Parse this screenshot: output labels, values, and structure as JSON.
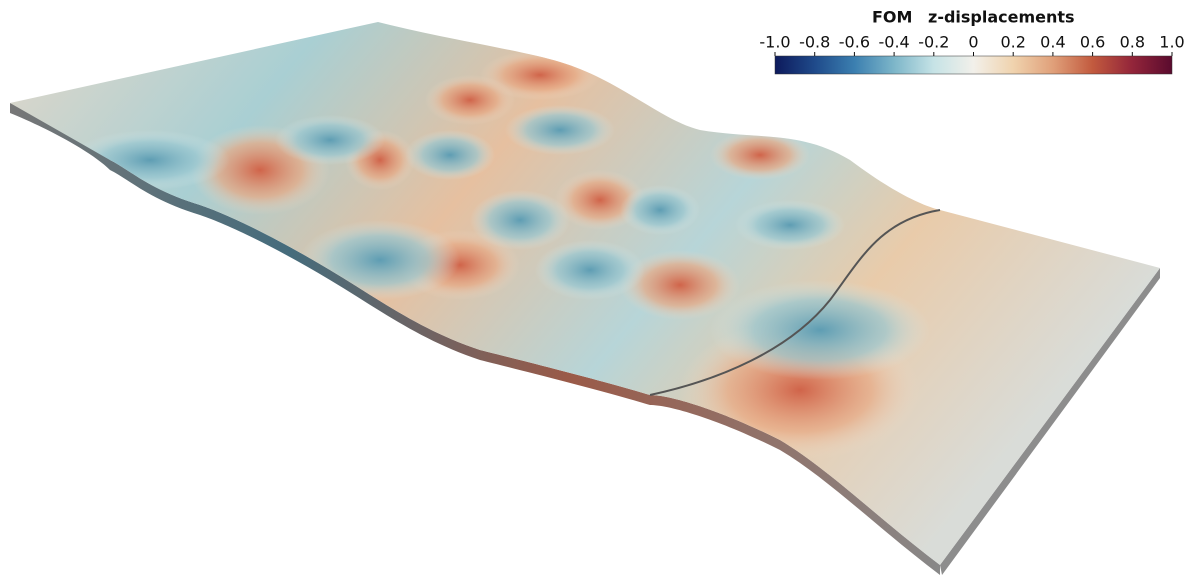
{
  "colorbar": {
    "title": {
      "dataset": "FOM",
      "field": "z-displacements"
    },
    "range": [
      -1,
      1
    ],
    "ticks": [
      {
        "value": -1,
        "label": "-1.0"
      },
      -0.8,
      -0.6,
      -0.4,
      -0.2,
      0,
      0.2,
      0.4,
      0.6,
      0.8,
      {
        "value": 1,
        "label": "1.0"
      }
    ],
    "colors": [
      "#0d1a5c",
      "#1f4a8a",
      "#3b7fb0",
      "#7db6c9",
      "#c6e3e6",
      "#f2f0ea",
      "#f0d3ae",
      "#e0a07a",
      "#c25a3e",
      "#93253a",
      "#5a0b2e"
    ]
  }
}
